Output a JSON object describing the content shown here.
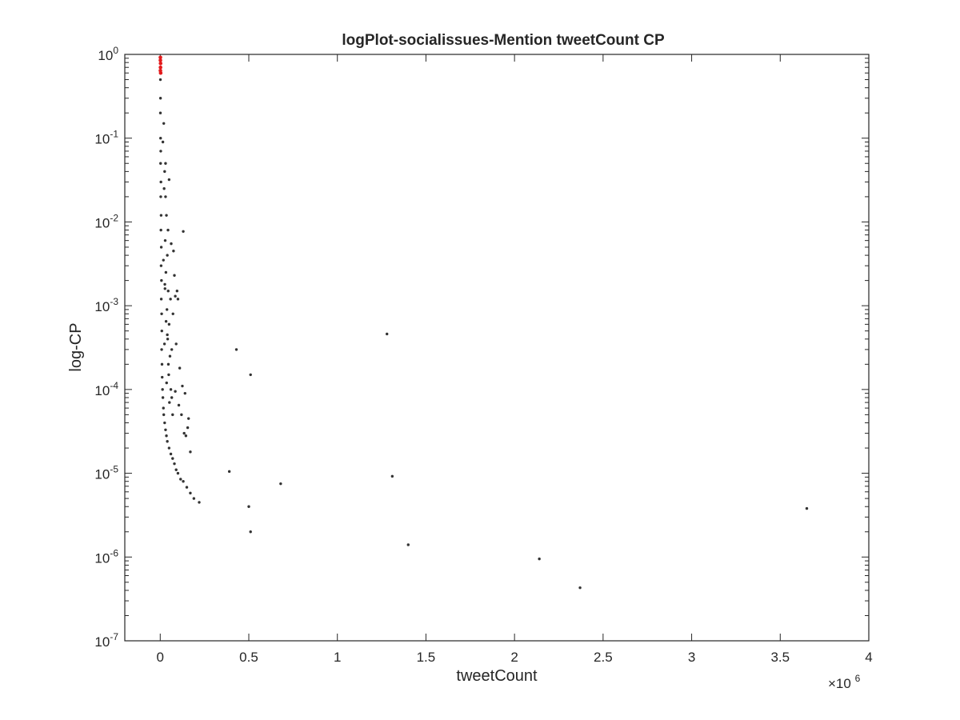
{
  "chart_data": {
    "type": "scatter",
    "title": "logPlot-socialissues-Mention tweetCount CP",
    "xlabel": "tweetCount",
    "ylabel": "log-CP",
    "x_multiplier_label": "×10",
    "x_multiplier_exponent": "6",
    "x_scale": "linear",
    "y_scale": "log",
    "xlim": [
      -200000,
      4000000
    ],
    "ylim": [
      1e-07,
      1
    ],
    "x_ticks": [
      0,
      500000,
      1000000,
      1500000,
      2000000,
      2500000,
      3000000,
      3500000,
      4000000
    ],
    "x_tick_labels": [
      "0",
      "0.5",
      "1",
      "1.5",
      "2",
      "2.5",
      "3",
      "3.5",
      "4"
    ],
    "y_ticks": [
      {
        "value": 1e-07,
        "base": "10",
        "exp": "-7"
      },
      {
        "value": 1e-06,
        "base": "10",
        "exp": "-6"
      },
      {
        "value": 1e-05,
        "base": "10",
        "exp": "-5"
      },
      {
        "value": 0.0001,
        "base": "10",
        "exp": "-4"
      },
      {
        "value": 0.001,
        "base": "10",
        "exp": "-3"
      },
      {
        "value": 0.01,
        "base": "10",
        "exp": "-2"
      },
      {
        "value": 0.1,
        "base": "10",
        "exp": "-1"
      },
      {
        "value": 1,
        "base": "10",
        "exp": "0"
      }
    ],
    "grid": false,
    "colors": {
      "main": "#333333",
      "highlight": "#e31a1c",
      "axis": "#262626"
    },
    "series": [
      {
        "color": "#333333",
        "points": [
          [
            1000,
            0.5
          ],
          [
            1500,
            0.3
          ],
          [
            1000,
            0.2
          ],
          [
            2000,
            0.1
          ],
          [
            3000,
            0.07
          ],
          [
            2000,
            0.05
          ],
          [
            4000,
            0.03
          ],
          [
            3000,
            0.02
          ],
          [
            5000,
            0.012
          ],
          [
            4000,
            0.008
          ],
          [
            6000,
            0.005
          ],
          [
            5000,
            0.003
          ],
          [
            7000,
            0.002
          ],
          [
            6000,
            0.0012
          ],
          [
            8000,
            0.0008
          ],
          [
            9000,
            0.0005
          ],
          [
            8000,
            0.0003
          ],
          [
            10000,
            0.0002
          ],
          [
            11000,
            0.00014
          ],
          [
            13000,
            0.0001
          ],
          [
            15000,
            8e-05
          ],
          [
            18000,
            6e-05
          ],
          [
            20000,
            5e-05
          ],
          [
            25000,
            4e-05
          ],
          [
            30000,
            3.3e-05
          ],
          [
            35000,
            2.8e-05
          ],
          [
            40000,
            2.4e-05
          ],
          [
            50000,
            2e-05
          ],
          [
            60000,
            1.7e-05
          ],
          [
            70000,
            1.5e-05
          ],
          [
            80000,
            1.3e-05
          ],
          [
            90000,
            1.1e-05
          ],
          [
            100000,
            1e-05
          ],
          [
            115000,
            8.5e-06
          ],
          [
            130000,
            8e-06
          ],
          [
            150000,
            6.8e-06
          ],
          [
            170000,
            5.8e-06
          ],
          [
            190000,
            5e-06
          ],
          [
            220000,
            4.5e-06
          ],
          [
            20000,
            0.15
          ],
          [
            15000,
            0.09
          ],
          [
            25000,
            0.04
          ],
          [
            30000,
            0.02
          ],
          [
            35000,
            0.012
          ],
          [
            28000,
            0.006
          ],
          [
            40000,
            0.004
          ],
          [
            32000,
            0.0025
          ],
          [
            45000,
            0.0015
          ],
          [
            38000,
            0.0009
          ],
          [
            50000,
            0.0006
          ],
          [
            42000,
            0.0004
          ],
          [
            55000,
            0.00025
          ],
          [
            48000,
            0.00015
          ],
          [
            60000,
            0.0001
          ],
          [
            52000,
            7e-05
          ],
          [
            70000,
            5e-05
          ],
          [
            22000,
            0.025
          ],
          [
            18000,
            0.0035
          ],
          [
            26000,
            0.0018
          ],
          [
            24000,
            0.00035
          ],
          [
            36000,
            0.00012
          ],
          [
            65000,
            0.0003
          ],
          [
            58000,
            0.0012
          ],
          [
            44000,
            0.008
          ],
          [
            62000,
            0.0055
          ],
          [
            75000,
            0.0045
          ],
          [
            85000,
            0.0013
          ],
          [
            95000,
            0.0015
          ],
          [
            100000,
            0.0012
          ],
          [
            80000,
            0.0023
          ],
          [
            72000,
            0.0008
          ],
          [
            90000,
            0.00035
          ],
          [
            110000,
            0.00018
          ],
          [
            120000,
            5e-05
          ],
          [
            140000,
            9e-05
          ],
          [
            135000,
            3e-05
          ],
          [
            160000,
            4.5e-05
          ],
          [
            155000,
            3.5e-05
          ],
          [
            170000,
            1.8e-05
          ],
          [
            105000,
            6.5e-05
          ],
          [
            125000,
            0.00011
          ],
          [
            145000,
            2.8e-05
          ],
          [
            65000,
            8e-05
          ],
          [
            85000,
            9.5e-05
          ],
          [
            30000,
            0.05
          ],
          [
            50000,
            0.032
          ],
          [
            130000,
            0.0077
          ],
          [
            40000,
            0.00045
          ],
          [
            46000,
            0.0002
          ],
          [
            33000,
            0.00065
          ],
          [
            27000,
            0.0016
          ],
          [
            430000,
            0.0003
          ],
          [
            510000,
            0.00015
          ],
          [
            1280000,
            0.00046
          ],
          [
            390000,
            1.05e-05
          ],
          [
            680000,
            7.5e-06
          ],
          [
            1310000,
            9.2e-06
          ],
          [
            500000,
            4e-06
          ],
          [
            510000,
            2e-06
          ],
          [
            1400000,
            1.4e-06
          ],
          [
            2140000,
            9.5e-07
          ],
          [
            2370000,
            4.3e-07
          ],
          [
            3650000,
            3.8e-06
          ]
        ]
      },
      {
        "color": "#e31a1c",
        "points": [
          [
            1000,
            0.92
          ],
          [
            1000,
            0.85
          ],
          [
            2000,
            0.78
          ],
          [
            1500,
            0.7
          ],
          [
            1000,
            0.64
          ],
          [
            2500,
            0.6
          ]
        ]
      }
    ]
  }
}
